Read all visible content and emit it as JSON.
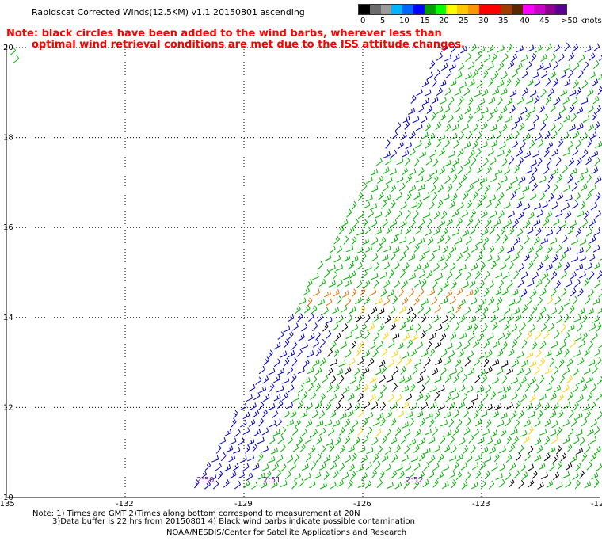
{
  "header": {
    "title": "Rapidscat Corrected Winds(12.5KM) v1.1 20150801 ascending",
    "note_line1": "Note: black circles have been added to the wind barbs, wherever less than",
    "note_line2": "optimal wind retrieval conditions are met due to the ISS attitude changes."
  },
  "legend": {
    "unit": "knots",
    "labels": [
      "0",
      "5",
      "10",
      "15",
      "20",
      "25",
      "30",
      "35",
      "40",
      "45",
      ">50 knots"
    ],
    "colors": [
      "#000000",
      "#6b6b6b",
      "#9a9a9a",
      "#00b4ff",
      "#0064ff",
      "#0000ff",
      "#00a000",
      "#00ff00",
      "#ffff00",
      "#ffc800",
      "#ff9600",
      "#ff0000",
      "#ff0000",
      "#a03c00",
      "#5a2800",
      "#ff00ff",
      "#c800c8",
      "#900090",
      "#5a0090"
    ]
  },
  "map": {
    "lat_labels": [
      "20",
      "18",
      "16",
      "14",
      "12",
      "10"
    ],
    "lon_labels": [
      "-135",
      "-132",
      "-129",
      "-126",
      "-123",
      "-12"
    ],
    "lat_range": [
      10,
      20
    ],
    "lon_range": [
      -135,
      -120
    ],
    "gridlines": true,
    "timestamps": [
      "2:50",
      "2:51",
      "2:52"
    ],
    "wind_colors": {
      "calm": "#000000",
      "light": "#0000cc",
      "moderate": "#00b400",
      "fresh": "#ffd200",
      "strong": "#e07000"
    }
  },
  "footer": {
    "line1": "Note: 1) Times are GMT 2)Times along bottom correspond to measurement at 20N",
    "line2": "3)Data buffer is 22 hrs from 20150801 4) Black wind barbs indicate possible contamination",
    "line3": "NOAA/NESDIS/Center for Satellite Applications and Research"
  }
}
